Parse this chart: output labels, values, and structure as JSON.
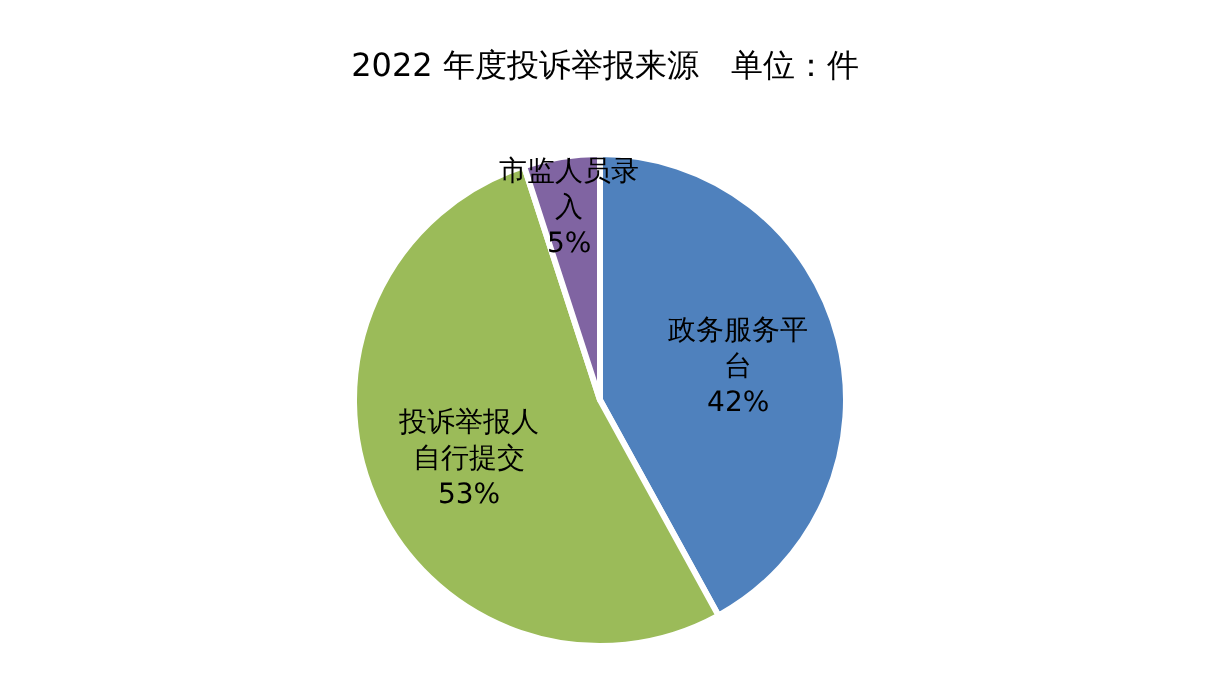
{
  "chart_data": {
    "type": "pie",
    "title": "2022 年度投诉举报来源　单位：件",
    "categories": [
      "政务服务平台",
      "投诉举报人自行提交",
      "市监人员录入"
    ],
    "values": [
      42,
      53,
      5
    ],
    "colors": [
      "#4f81bd",
      "#9bbb59",
      "#8064a2"
    ],
    "value_labels": [
      "42%",
      "53%",
      "5%"
    ]
  }
}
